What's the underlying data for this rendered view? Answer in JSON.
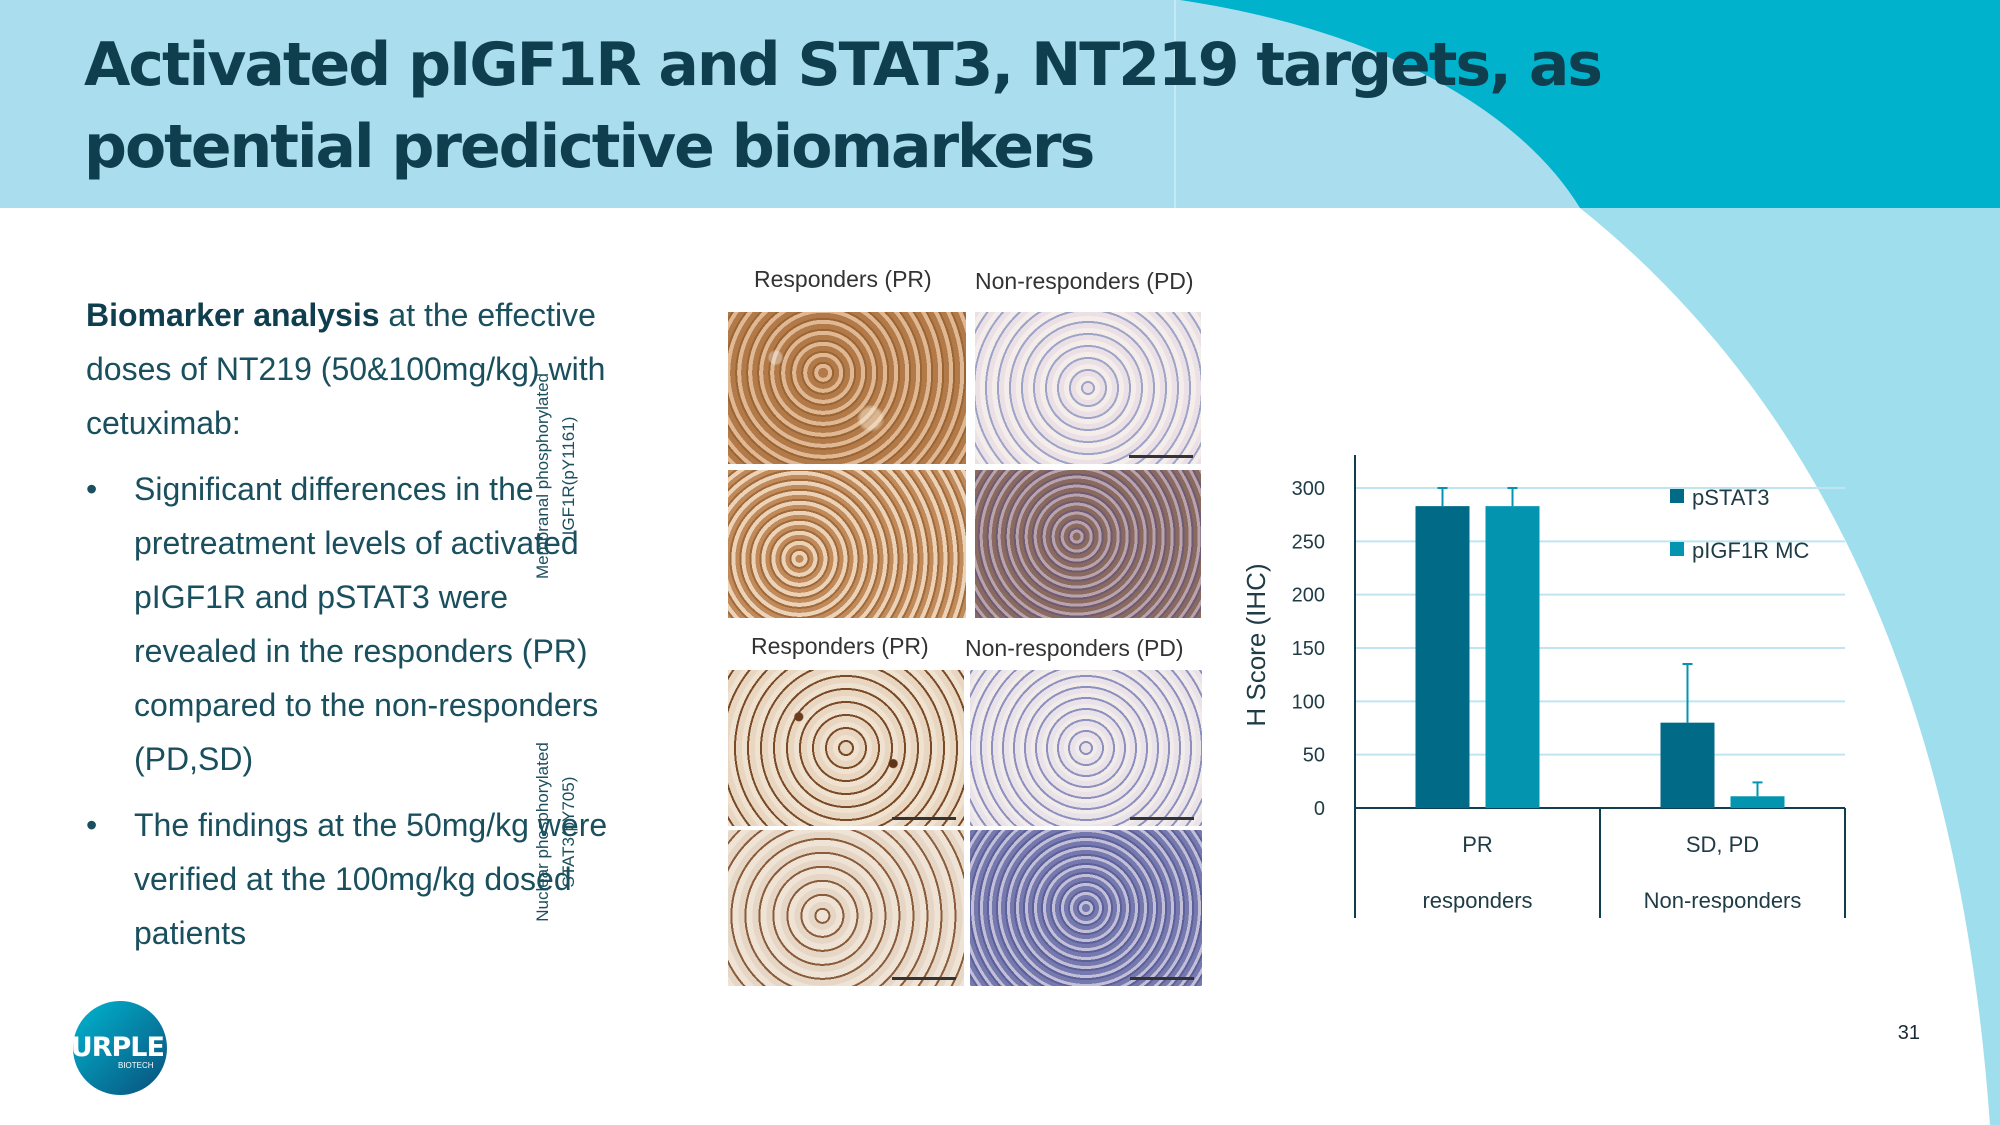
{
  "slide": {
    "title": "Activated pIGF1R and STAT3, NT219 targets, as potential predictive biomarkers",
    "page_number": "31",
    "colors": {
      "header_bg": "#aadeef",
      "accent": "#00a9c8",
      "title": "#0f3e4f"
    }
  },
  "left": {
    "intro_bold": "Biomarker analysis",
    "intro_rest": " at the effective doses of NT219 (50&100mg/kg) with cetuximab:",
    "bullets": [
      "Significant differences in the pretreatment levels of activated pIGF1R and pSTAT3 were revealed in the responders (PR) compared to the non-responders (PD,SD)",
      "The findings at the 50mg/kg were verified at the 100mg/kg dosed patients"
    ]
  },
  "ihc": {
    "top_responders": "Responders (PR)",
    "top_nonresponders": "Non-responders (PD)",
    "bottom_responders": "Responders (PR)",
    "bottom_nonresponders": "Non-responders (PD)",
    "row1_label_line1": "Membranal phosphorylated",
    "row1_label_line2": "IGF1R(pY1161)",
    "row2_label_line1": "Nuclear phosphorylated",
    "row2_label_line2": "STAT3(pY705)"
  },
  "chart_data": {
    "type": "bar",
    "ylabel": "H Score (IHC)",
    "ylim": [
      0,
      300
    ],
    "yticks": [
      "0",
      "50",
      "100",
      "150",
      "200",
      "250",
      "300"
    ],
    "categories": [
      "PR",
      "SD, PD"
    ],
    "groups": [
      "responders",
      "Non-responders"
    ],
    "series": [
      {
        "name": "pSTAT3",
        "color": "#006a87",
        "values": [
          283,
          80
        ],
        "error": [
          17,
          55
        ]
      },
      {
        "name": "pIGF1R MC",
        "color": "#0395b0",
        "values": [
          283,
          11
        ],
        "error": [
          17,
          13
        ]
      }
    ],
    "grid": true,
    "legend": "right"
  },
  "logo": {
    "text": "PURPLE",
    "subtext": "BIOTECH"
  }
}
